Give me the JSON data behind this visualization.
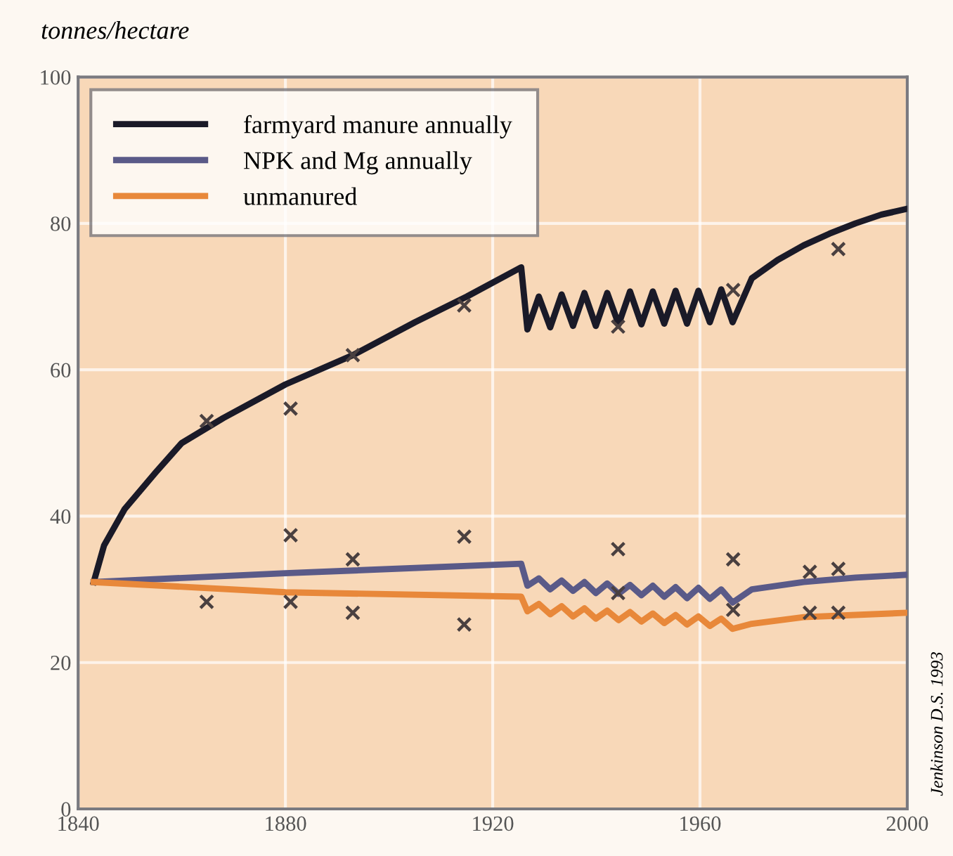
{
  "chart_data": {
    "type": "line",
    "ylabel": "tonnes/hectare",
    "annotations": [
      "Jenkinson D.S. 1993"
    ],
    "xlim": [
      1840,
      2000
    ],
    "ylim": [
      0,
      100
    ],
    "xticks": [
      1840,
      1880,
      1920,
      1960,
      2000
    ],
    "yticks": [
      0,
      20,
      40,
      60,
      80,
      100
    ],
    "grid": true,
    "legend": "top left",
    "line_style": "solid",
    "series": [
      {
        "name": "farmyard manure annually",
        "color": "#1a1a28",
        "marker": "none",
        "x": [
          1843,
          1845,
          1849,
          1855,
          1860,
          1868,
          1880,
          1893,
          1905,
          1915,
          1925.5,
          1926.7,
          1928.9,
          1931.1,
          1933.3,
          1935.5,
          1937.7,
          1939.9,
          1942.1,
          1944.3,
          1946.5,
          1948.7,
          1950.9,
          1953.1,
          1955.3,
          1957.5,
          1959.7,
          1961.9,
          1964.1,
          1966.3,
          1970,
          1975,
          1980,
          1985,
          1990,
          1995,
          2000
        ],
        "values": [
          31,
          36,
          41,
          46,
          50,
          53.4,
          58,
          62,
          66.5,
          70,
          74,
          65.5,
          70,
          65.8,
          70.3,
          66,
          70.5,
          66,
          70.5,
          66.2,
          70.7,
          66.2,
          70.7,
          66.3,
          70.8,
          66.3,
          70.8,
          66.5,
          71,
          66.5,
          72.5,
          75,
          77,
          78.6,
          80,
          81.2,
          82
        ]
      },
      {
        "name": "NPK and Mg annually",
        "color": "#5a5a88",
        "marker": "none",
        "x": [
          1843,
          1880,
          1925.5,
          1926.7,
          1928.9,
          1931.1,
          1933.3,
          1935.5,
          1937.7,
          1939.9,
          1942.1,
          1944.3,
          1946.5,
          1948.7,
          1950.9,
          1953.1,
          1955.3,
          1957.5,
          1959.7,
          1961.9,
          1964.1,
          1966.3,
          1970,
          1980,
          1990,
          2000
        ],
        "values": [
          31,
          32.2,
          33.5,
          30.5,
          31.5,
          30,
          31.2,
          29.8,
          31,
          29.5,
          30.8,
          29.4,
          30.6,
          29.2,
          30.5,
          29,
          30.3,
          28.8,
          30.2,
          28.7,
          30,
          28.2,
          30,
          31,
          31.6,
          32
        ]
      },
      {
        "name": "unmanured",
        "color": "#e8883a",
        "marker": "none",
        "x": [
          1843,
          1880,
          1925.5,
          1926.7,
          1928.9,
          1931.1,
          1933.3,
          1935.5,
          1937.7,
          1939.9,
          1942.1,
          1944.3,
          1946.5,
          1948.7,
          1950.9,
          1953.1,
          1955.3,
          1957.5,
          1959.7,
          1961.9,
          1964.1,
          1966.3,
          1970,
          1980,
          1990,
          2000
        ],
        "values": [
          31,
          29.6,
          29,
          27,
          28,
          26.6,
          27.7,
          26.3,
          27.4,
          26,
          27.1,
          25.8,
          26.9,
          25.6,
          26.7,
          25.4,
          26.5,
          25.2,
          26.3,
          25,
          26,
          24.6,
          25.3,
          26.2,
          26.5,
          26.8
        ]
      },
      {
        "type": "scatter",
        "color": "#4a4040",
        "marker": "cross",
        "x": [
          1864.8,
          1864.8,
          1881,
          1881,
          1881,
          1893,
          1893,
          1893,
          1914.5,
          1914.5,
          1914.5,
          1944.2,
          1944.2,
          1944.2,
          1966.4,
          1966.4,
          1966.4,
          1981.2,
          1981.2,
          1986.7,
          1986.7,
          1986.7
        ],
        "values": [
          53,
          28.3,
          54.7,
          37.4,
          28.3,
          62,
          34.1,
          26.8,
          68.8,
          37.2,
          25.2,
          65.9,
          35.5,
          29.5,
          70.9,
          34.1,
          27.2,
          32.4,
          26.8,
          76.5,
          32.8,
          26.8
        ]
      }
    ]
  }
}
